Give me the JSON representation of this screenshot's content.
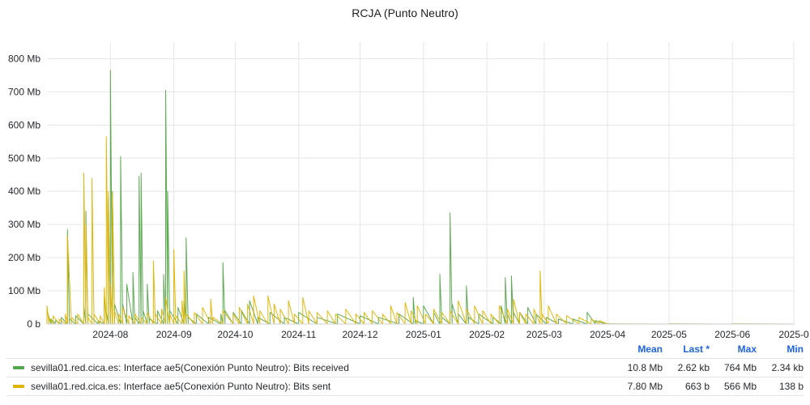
{
  "title": "RCJA (Punto Neutro)",
  "chart_data": {
    "type": "line",
    "ylim": [
      0,
      850
    ],
    "y_ticks": [
      {
        "value": 0,
        "label": "0 b"
      },
      {
        "value": 100,
        "label": "100 Mb"
      },
      {
        "value": 200,
        "label": "200 Mb"
      },
      {
        "value": 300,
        "label": "300 Mb"
      },
      {
        "value": 400,
        "label": "400 Mb"
      },
      {
        "value": 500,
        "label": "500 Mb"
      },
      {
        "value": 600,
        "label": "600 Mb"
      },
      {
        "value": 700,
        "label": "700 Mb"
      },
      {
        "value": 800,
        "label": "800 Mb"
      }
    ],
    "x_range": [
      "2024-07-01",
      "2025-07-01"
    ],
    "x_ticks": [
      {
        "date": "2024-08-01",
        "label": "2024-08"
      },
      {
        "date": "2024-09-01",
        "label": "2024-09"
      },
      {
        "date": "2024-10-01",
        "label": "2024-10"
      },
      {
        "date": "2024-11-01",
        "label": "2024-11"
      },
      {
        "date": "2024-12-01",
        "label": "2024-12"
      },
      {
        "date": "2025-01-01",
        "label": "2025-01"
      },
      {
        "date": "2025-02-01",
        "label": "2025-02"
      },
      {
        "date": "2025-03-01",
        "label": "2025-03"
      },
      {
        "date": "2025-04-01",
        "label": "2025-04"
      },
      {
        "date": "2025-05-01",
        "label": "2025-05"
      },
      {
        "date": "2025-06-01",
        "label": "2025-06"
      },
      {
        "date": "2025-07-01",
        "label": "2025-0"
      }
    ],
    "grid": true,
    "legend": "bottom",
    "series": [
      {
        "name": "sevilla01.red.cica.es: Interface ae5(Conexión Punto Neutro): Bits received",
        "color": "#56a64b",
        "points": [
          [
            "2024-07-01",
            40
          ],
          [
            "2024-07-03",
            15
          ],
          [
            "2024-07-05",
            10
          ],
          [
            "2024-07-08",
            20
          ],
          [
            "2024-07-11",
            285
          ],
          [
            "2024-07-12",
            15
          ],
          [
            "2024-07-15",
            25
          ],
          [
            "2024-07-19",
            55
          ],
          [
            "2024-07-20",
            340
          ],
          [
            "2024-07-21",
            30
          ],
          [
            "2024-07-26",
            10
          ],
          [
            "2024-07-29",
            75
          ],
          [
            "2024-07-31",
            380
          ],
          [
            "2024-08-01",
            765
          ],
          [
            "2024-08-02",
            400
          ],
          [
            "2024-08-03",
            60
          ],
          [
            "2024-08-06",
            505
          ],
          [
            "2024-08-07",
            60
          ],
          [
            "2024-08-09",
            120
          ],
          [
            "2024-08-12",
            155
          ],
          [
            "2024-08-13",
            20
          ],
          [
            "2024-08-15",
            445
          ],
          [
            "2024-08-16",
            455
          ],
          [
            "2024-08-17",
            40
          ],
          [
            "2024-08-19",
            120
          ],
          [
            "2024-08-20",
            15
          ],
          [
            "2024-08-24",
            40
          ],
          [
            "2024-08-27",
            150
          ],
          [
            "2024-08-28",
            705
          ],
          [
            "2024-08-29",
            400
          ],
          [
            "2024-08-30",
            40
          ],
          [
            "2024-09-03",
            50
          ],
          [
            "2024-09-06",
            70
          ],
          [
            "2024-09-07",
            260
          ],
          [
            "2024-09-08",
            20
          ],
          [
            "2024-09-12",
            30
          ],
          [
            "2024-09-18",
            20
          ],
          [
            "2024-09-24",
            30
          ],
          [
            "2024-09-25",
            185
          ],
          [
            "2024-09-26",
            40
          ],
          [
            "2024-09-30",
            35
          ],
          [
            "2024-10-04",
            40
          ],
          [
            "2024-10-08",
            70
          ],
          [
            "2024-10-12",
            20
          ],
          [
            "2024-10-18",
            35
          ],
          [
            "2024-10-25",
            20
          ],
          [
            "2024-11-01",
            35
          ],
          [
            "2024-11-10",
            20
          ],
          [
            "2024-11-20",
            30
          ],
          [
            "2024-12-01",
            25
          ],
          [
            "2024-12-10",
            20
          ],
          [
            "2024-12-20",
            30
          ],
          [
            "2024-12-27",
            80
          ],
          [
            "2024-12-28",
            10
          ],
          [
            "2025-01-01",
            55
          ],
          [
            "2025-01-06",
            35
          ],
          [
            "2025-01-09",
            150
          ],
          [
            "2025-01-10",
            20
          ],
          [
            "2025-01-14",
            335
          ],
          [
            "2025-01-15",
            60
          ],
          [
            "2025-01-18",
            30
          ],
          [
            "2025-01-22",
            115
          ],
          [
            "2025-01-23",
            20
          ],
          [
            "2025-01-28",
            30
          ],
          [
            "2025-02-04",
            20
          ],
          [
            "2025-02-08",
            55
          ],
          [
            "2025-02-10",
            140
          ],
          [
            "2025-02-11",
            30
          ],
          [
            "2025-02-13",
            145
          ],
          [
            "2025-02-14",
            35
          ],
          [
            "2025-02-17",
            35
          ],
          [
            "2025-02-21",
            50
          ],
          [
            "2025-02-25",
            30
          ],
          [
            "2025-03-02",
            20
          ],
          [
            "2025-03-08",
            15
          ],
          [
            "2025-03-15",
            15
          ],
          [
            "2025-03-22",
            35
          ],
          [
            "2025-03-26",
            10
          ],
          [
            "2025-03-31",
            2
          ],
          [
            "2025-04-03",
            0.5
          ],
          [
            "2025-05-01",
            0.5
          ],
          [
            "2025-06-01",
            0.5
          ],
          [
            "2025-07-01",
            0.5
          ]
        ]
      },
      {
        "name": "sevilla01.red.cica.es: Interface ae5(Conexión Punto Neutro): Bits sent",
        "color": "#e0b400",
        "points": [
          [
            "2024-07-01",
            55
          ],
          [
            "2024-07-02",
            20
          ],
          [
            "2024-07-04",
            25
          ],
          [
            "2024-07-07",
            15
          ],
          [
            "2024-07-10",
            30
          ],
          [
            "2024-07-11",
            265
          ],
          [
            "2024-07-13",
            20
          ],
          [
            "2024-07-16",
            30
          ],
          [
            "2024-07-19",
            455
          ],
          [
            "2024-07-20",
            300
          ],
          [
            "2024-07-21",
            20
          ],
          [
            "2024-07-23",
            440
          ],
          [
            "2024-07-24",
            30
          ],
          [
            "2024-07-27",
            25
          ],
          [
            "2024-07-29",
            110
          ],
          [
            "2024-07-30",
            565
          ],
          [
            "2024-07-31",
            400
          ],
          [
            "2024-08-01",
            120
          ],
          [
            "2024-08-02",
            395
          ],
          [
            "2024-08-03",
            40
          ],
          [
            "2024-08-05",
            30
          ],
          [
            "2024-08-07",
            50
          ],
          [
            "2024-08-10",
            25
          ],
          [
            "2024-08-13",
            30
          ],
          [
            "2024-08-16",
            20
          ],
          [
            "2024-08-19",
            35
          ],
          [
            "2024-08-22",
            190
          ],
          [
            "2024-08-23",
            30
          ],
          [
            "2024-08-26",
            45
          ],
          [
            "2024-08-28",
            80
          ],
          [
            "2024-08-30",
            30
          ],
          [
            "2024-09-01",
            225
          ],
          [
            "2024-09-02",
            25
          ],
          [
            "2024-09-05",
            70
          ],
          [
            "2024-09-06",
            160
          ],
          [
            "2024-09-07",
            30
          ],
          [
            "2024-09-11",
            35
          ],
          [
            "2024-09-15",
            50
          ],
          [
            "2024-09-19",
            75
          ],
          [
            "2024-09-20",
            20
          ],
          [
            "2024-09-25",
            40
          ],
          [
            "2024-09-30",
            30
          ],
          [
            "2024-10-03",
            50
          ],
          [
            "2024-10-07",
            60
          ],
          [
            "2024-10-10",
            85
          ],
          [
            "2024-10-13",
            40
          ],
          [
            "2024-10-17",
            85
          ],
          [
            "2024-10-20",
            60
          ],
          [
            "2024-10-23",
            45
          ],
          [
            "2024-10-27",
            70
          ],
          [
            "2024-10-30",
            30
          ],
          [
            "2024-11-03",
            80
          ],
          [
            "2024-11-06",
            40
          ],
          [
            "2024-11-10",
            35
          ],
          [
            "2024-11-15",
            40
          ],
          [
            "2024-11-19",
            30
          ],
          [
            "2024-11-24",
            45
          ],
          [
            "2024-11-29",
            30
          ],
          [
            "2024-12-03",
            35
          ],
          [
            "2024-12-07",
            40
          ],
          [
            "2024-12-12",
            30
          ],
          [
            "2024-12-16",
            55
          ],
          [
            "2024-12-19",
            35
          ],
          [
            "2024-12-23",
            65
          ],
          [
            "2024-12-26",
            40
          ],
          [
            "2024-12-29",
            55
          ],
          [
            "2025-01-02",
            30
          ],
          [
            "2025-01-06",
            45
          ],
          [
            "2025-01-10",
            35
          ],
          [
            "2025-01-14",
            40
          ],
          [
            "2025-01-18",
            70
          ],
          [
            "2025-01-22",
            45
          ],
          [
            "2025-01-26",
            55
          ],
          [
            "2025-01-30",
            40
          ],
          [
            "2025-02-03",
            30
          ],
          [
            "2025-02-07",
            55
          ],
          [
            "2025-02-11",
            45
          ],
          [
            "2025-02-14",
            75
          ],
          [
            "2025-02-17",
            35
          ],
          [
            "2025-02-20",
            30
          ],
          [
            "2025-02-24",
            45
          ],
          [
            "2025-02-27",
            160
          ],
          [
            "2025-02-28",
            30
          ],
          [
            "2025-03-03",
            55
          ],
          [
            "2025-03-07",
            30
          ],
          [
            "2025-03-12",
            25
          ],
          [
            "2025-03-18",
            20
          ],
          [
            "2025-03-24",
            15
          ],
          [
            "2025-03-28",
            10
          ],
          [
            "2025-04-01",
            1
          ],
          [
            "2025-04-03",
            0.3
          ],
          [
            "2025-05-01",
            0.3
          ],
          [
            "2025-06-01",
            0.3
          ],
          [
            "2025-07-01",
            0.3
          ]
        ]
      }
    ]
  },
  "legend": {
    "headers": {
      "mean": "Mean",
      "last": "Last *",
      "max": "Max",
      "min": "Min"
    },
    "rows": [
      {
        "name": "sevilla01.red.cica.es: Interface ae5(Conexión Punto Neutro): Bits received",
        "color": "#56a64b",
        "mean": "10.8 Mb",
        "last": "2.62 kb",
        "max": "764 Mb",
        "min": "2.34 kb"
      },
      {
        "name": "sevilla01.red.cica.es: Interface ae5(Conexión Punto Neutro): Bits sent",
        "color": "#e0b400",
        "mean": "7.80 Mb",
        "last": "663 b",
        "max": "566 Mb",
        "min": "138 b"
      }
    ]
  }
}
